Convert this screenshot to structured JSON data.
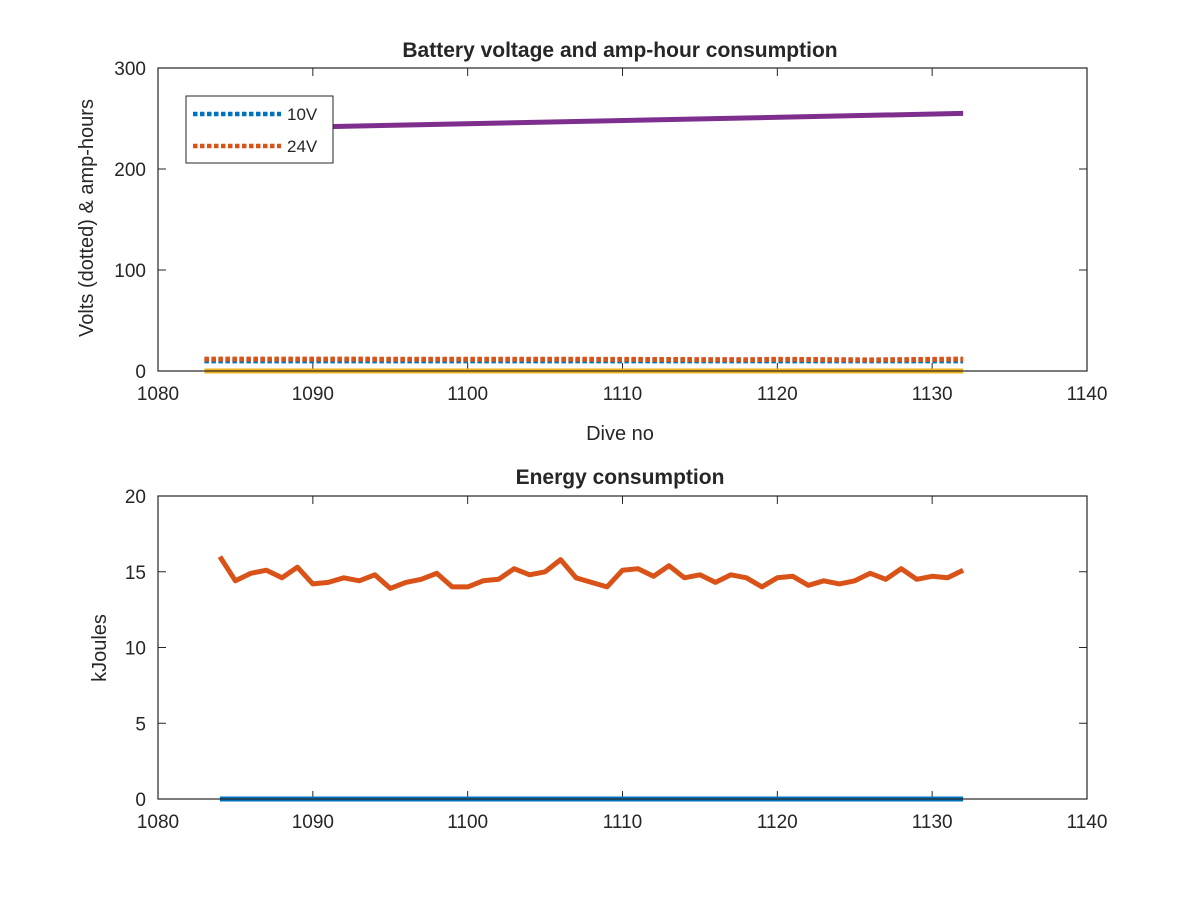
{
  "chart_data": [
    {
      "type": "line",
      "title": "Battery voltage and amp-hour consumption",
      "xlabel": "Dive no",
      "ylabel": "Volts (dotted) & amp-hours",
      "xlim": [
        1080,
        1140
      ],
      "ylim": [
        0,
        300
      ],
      "xticks": [
        1080,
        1090,
        1100,
        1110,
        1120,
        1130,
        1140
      ],
      "yticks": [
        0,
        100,
        200,
        300
      ],
      "grid": false,
      "legend": {
        "placement": "top-left",
        "entries": [
          "10V",
          "24V"
        ]
      },
      "series": [
        {
          "name": "10V",
          "style": "dotted",
          "color": "#0072BD",
          "x": [
            1083,
            1132
          ],
          "y": [
            10,
            10
          ]
        },
        {
          "name": "24V",
          "style": "dotted",
          "color": "#D95319",
          "x": [
            1083,
            1108,
            1118,
            1120,
            1126,
            1132
          ],
          "y": [
            11.8,
            11.6,
            11.2,
            11.6,
            11,
            11.8
          ]
        },
        {
          "style": "solid",
          "color": "#7E2F8E",
          "x": [
            1088,
            1132
          ],
          "y": [
            241,
            255
          ]
        },
        {
          "style": "solid",
          "color": "#EDB120",
          "x": [
            1083,
            1132
          ],
          "y": [
            0,
            0
          ]
        }
      ]
    },
    {
      "type": "line",
      "title": "Energy consumption",
      "xlabel": "",
      "ylabel": "kJoules",
      "xlim": [
        1080,
        1140
      ],
      "ylim": [
        0,
        20
      ],
      "xticks": [
        1080,
        1090,
        1100,
        1110,
        1120,
        1130,
        1140
      ],
      "yticks": [
        0,
        5,
        10,
        15,
        20
      ],
      "grid": false,
      "series": [
        {
          "style": "solid",
          "color": "#D95319",
          "x": [
            1084,
            1085,
            1086,
            1087,
            1088,
            1089,
            1090,
            1091,
            1092,
            1093,
            1094,
            1095,
            1096,
            1097,
            1098,
            1099,
            1100,
            1101,
            1102,
            1103,
            1104,
            1105,
            1106,
            1107,
            1108,
            1109,
            1110,
            1111,
            1112,
            1113,
            1114,
            1115,
            1116,
            1117,
            1118,
            1119,
            1120,
            1121,
            1122,
            1123,
            1124,
            1125,
            1126,
            1127,
            1128,
            1129,
            1130,
            1131,
            1132
          ],
          "y": [
            16.0,
            14.4,
            14.9,
            15.1,
            14.6,
            15.3,
            14.2,
            14.3,
            14.6,
            14.4,
            14.8,
            13.9,
            14.3,
            14.5,
            14.9,
            14.0,
            14.0,
            14.4,
            14.5,
            15.2,
            14.8,
            15.0,
            15.8,
            14.6,
            14.3,
            14.0,
            15.1,
            15.2,
            14.7,
            15.4,
            14.6,
            14.8,
            14.3,
            14.8,
            14.6,
            14.0,
            14.6,
            14.7,
            14.1,
            14.4,
            14.2,
            14.4,
            14.9,
            14.5,
            15.2,
            14.5,
            14.7,
            14.6,
            15.1
          ]
        },
        {
          "style": "solid",
          "color": "#0072BD",
          "x": [
            1084,
            1132
          ],
          "y": [
            0,
            0
          ]
        }
      ]
    }
  ]
}
